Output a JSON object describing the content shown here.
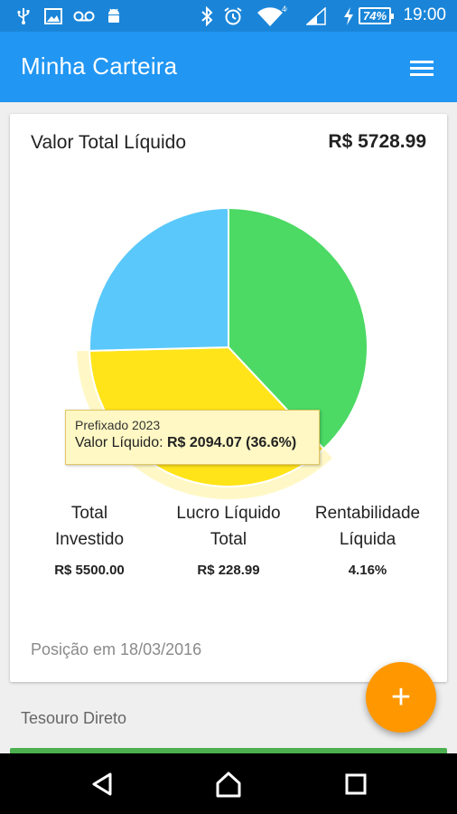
{
  "status_bar": {
    "time": "19:00",
    "battery": "74%",
    "network": "4G",
    "icons": [
      "usb-icon",
      "image-icon",
      "voicemail-icon",
      "android-icon",
      "bluetooth-icon",
      "alarm-icon",
      "wifi-icon",
      "signal-icon",
      "charging-icon",
      "battery-icon"
    ]
  },
  "app_bar": {
    "title": "Minha Carteira",
    "menu_icon": "hamburger-menu-icon"
  },
  "summary": {
    "total_label": "Valor Total Líquido",
    "total_value": "R$ 5728.99"
  },
  "tooltip": {
    "title": "Prefixado 2023",
    "prefix": "Valor Líquido: ",
    "value": "R$ 2094.07 (36.6%)"
  },
  "chart_data": {
    "type": "pie",
    "slices": [
      {
        "name": "",
        "value": 38.0,
        "color": "#4cd964"
      },
      {
        "name": "Prefixado 2023",
        "value": 36.6,
        "color": "#ffe41a",
        "highlighted": true
      },
      {
        "name": "",
        "value": 25.4,
        "color": "#5ac8fa"
      }
    ]
  },
  "stats": [
    {
      "label_line1": "Total",
      "label_line2": "Investido",
      "value": "R$ 5500.00"
    },
    {
      "label_line1": "Lucro Líquido",
      "label_line2": "Total",
      "value": "R$ 228.99"
    },
    {
      "label_line1": "Rentabilidade",
      "label_line2": "Líquida",
      "value": "4.16%"
    }
  ],
  "position_text": "Posição em 18/03/2016",
  "section_title": "Tesouro Direto",
  "fab": {
    "label": "+"
  },
  "colors": {
    "status_bar": "#1a85d8",
    "app_bar": "#2196f3",
    "fab": "#ff9800",
    "strip": "#4caf50"
  }
}
